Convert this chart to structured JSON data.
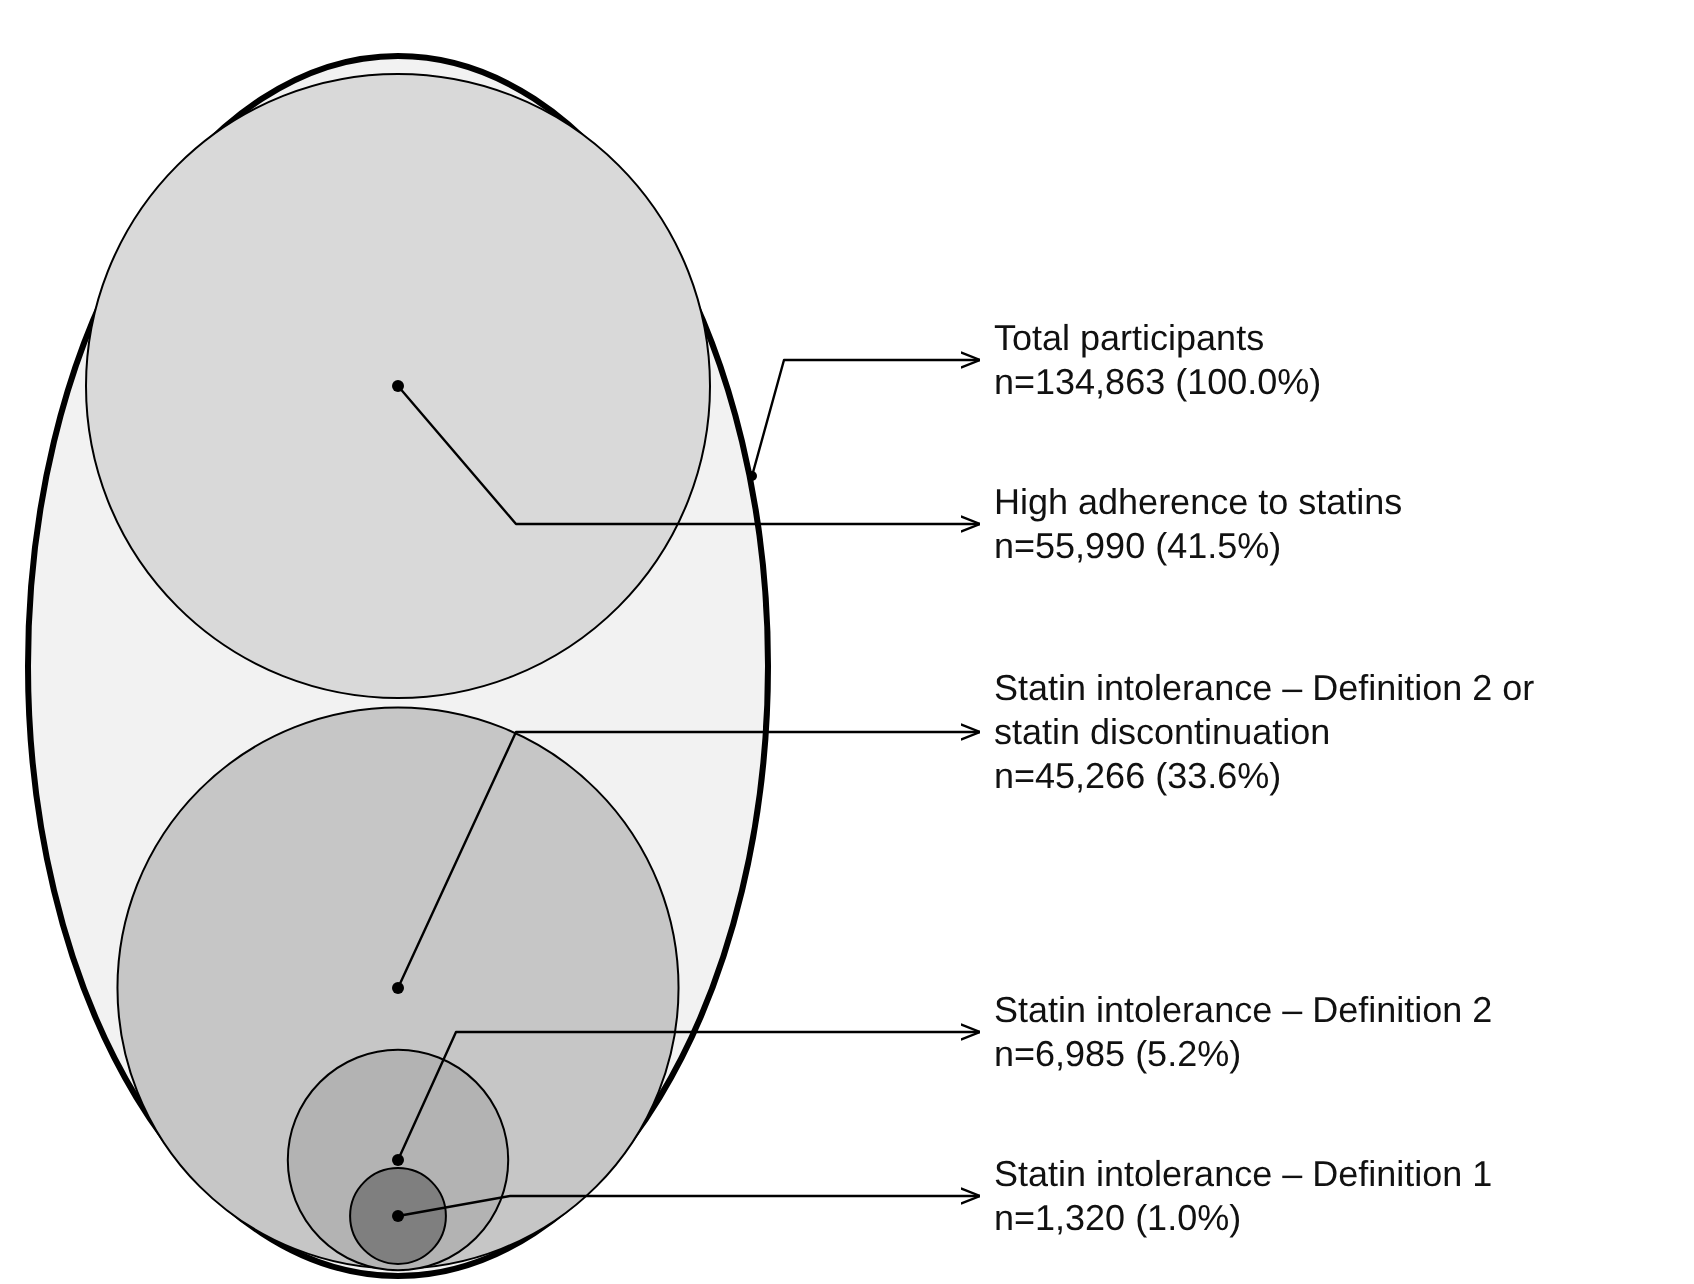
{
  "chart_data": {
    "type": "other",
    "categories": [
      "Total participants",
      "High adherence to statins",
      "Statin intolerance – Definition 2 or statin discontinuation",
      "Statin intolerance – Definition 2",
      "Statin intolerance – Definition 1"
    ],
    "values": [
      134863,
      55990,
      45266,
      6985,
      1320
    ],
    "value_labels": [
      "n=134,863 (100.0%)",
      "n=55,990 (41.5%)",
      "n=45,266 (33.6%)",
      "n=6,985 (5.2%)",
      "n=1,320 (1.0%)"
    ],
    "colors": [
      "#f2f2f2",
      "#d9d9d9",
      "#c6c6c6",
      "#b3b3b3",
      "#7f7f7f"
    ]
  }
}
